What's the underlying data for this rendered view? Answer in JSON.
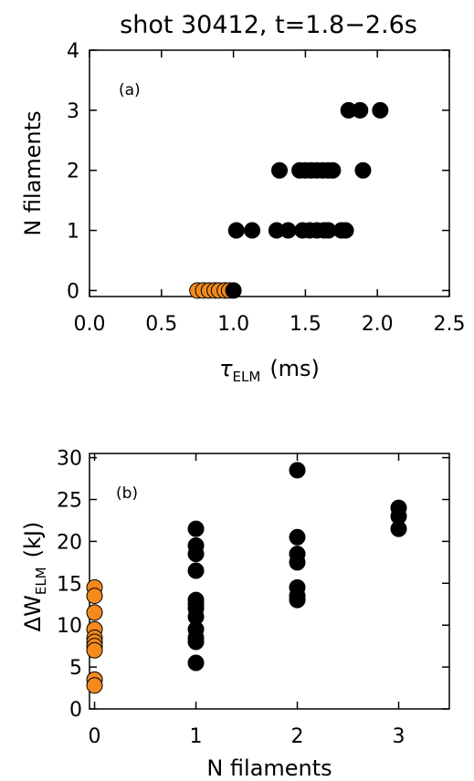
{
  "chart_data": [
    {
      "type": "scatter",
      "title": "shot 30412, t=1.8−2.6s",
      "panel_label": "(a)",
      "xlabel_symbol": "τ",
      "xlabel_sub": "ELM",
      "xlabel_unit": "(ms)",
      "ylabel": "N filaments",
      "xlim": [
        0.0,
        2.5
      ],
      "ylim": [
        -0.1,
        4.0
      ],
      "xticks": [
        0.0,
        0.5,
        1.0,
        1.5,
        2.0,
        2.5
      ],
      "xtick_labels": [
        "0.0",
        "0.5",
        "1.0",
        "1.5",
        "2.0",
        "2.5"
      ],
      "yticks": [
        0,
        1,
        2,
        3,
        4
      ],
      "ytick_labels": [
        "0",
        "1",
        "2",
        "3",
        "4"
      ],
      "grid": false,
      "series": [
        {
          "color": "#f28a1c",
          "points": [
            [
              0.75,
              0
            ],
            [
              0.79,
              0
            ],
            [
              0.83,
              0
            ],
            [
              0.87,
              0
            ],
            [
              0.9,
              0
            ],
            [
              0.94,
              0
            ],
            [
              0.97,
              0
            ]
          ]
        },
        {
          "color": "#000000",
          "points": [
            [
              1.0,
              0
            ],
            [
              1.02,
              1
            ],
            [
              1.13,
              1
            ],
            [
              1.3,
              1
            ],
            [
              1.38,
              1
            ],
            [
              1.48,
              1
            ],
            [
              1.53,
              1
            ],
            [
              1.58,
              1
            ],
            [
              1.63,
              1
            ],
            [
              1.66,
              1
            ],
            [
              1.75,
              1
            ],
            [
              1.78,
              1
            ],
            [
              1.32,
              2
            ],
            [
              1.46,
              2
            ],
            [
              1.5,
              2
            ],
            [
              1.54,
              2
            ],
            [
              1.58,
              2
            ],
            [
              1.62,
              2
            ],
            [
              1.66,
              2
            ],
            [
              1.69,
              2
            ],
            [
              1.9,
              2
            ],
            [
              1.8,
              3
            ],
            [
              1.88,
              3
            ],
            [
              2.02,
              3
            ]
          ]
        }
      ]
    },
    {
      "type": "scatter",
      "panel_label": "(b)",
      "ylabel_prefix": "ΔW",
      "ylabel_sub": "ELM",
      "ylabel_unit": "(kJ)",
      "xlabel": "N filaments",
      "xlim": [
        -0.05,
        3.5
      ],
      "ylim": [
        0,
        30.5
      ],
      "xticks": [
        0,
        1,
        2,
        3
      ],
      "xtick_labels": [
        "0",
        "1",
        "2",
        "3"
      ],
      "yticks": [
        0,
        5,
        10,
        15,
        20,
        25,
        30
      ],
      "ytick_labels": [
        "0",
        "5",
        "10",
        "15",
        "20",
        "25",
        "30"
      ],
      "grid": false,
      "series": [
        {
          "color": "#f28a1c",
          "points": [
            [
              0,
              14.5
            ],
            [
              0,
              13.5
            ],
            [
              0,
              11.5
            ],
            [
              0,
              9.5
            ],
            [
              0,
              8.5
            ],
            [
              0,
              8.0
            ],
            [
              0,
              7.5
            ],
            [
              0,
              7.0
            ],
            [
              0,
              3.5
            ],
            [
              0,
              2.8
            ]
          ]
        },
        {
          "color": "#000000",
          "points": [
            [
              1,
              21.5
            ],
            [
              1,
              19.5
            ],
            [
              1,
              18.5
            ],
            [
              1,
              16.5
            ],
            [
              1,
              13.0
            ],
            [
              1,
              12.5
            ],
            [
              1,
              12.0
            ],
            [
              1,
              11.0
            ],
            [
              1,
              9.5
            ],
            [
              1,
              8.5
            ],
            [
              1,
              8.0
            ],
            [
              1,
              5.5
            ],
            [
              2,
              28.5
            ],
            [
              2,
              20.5
            ],
            [
              2,
              18.5
            ],
            [
              2,
              17.5
            ],
            [
              2,
              14.5
            ],
            [
              2,
              13.5
            ],
            [
              2,
              13.0
            ],
            [
              3,
              24.0
            ],
            [
              3,
              23.0
            ],
            [
              3,
              21.5
            ]
          ]
        }
      ]
    }
  ]
}
